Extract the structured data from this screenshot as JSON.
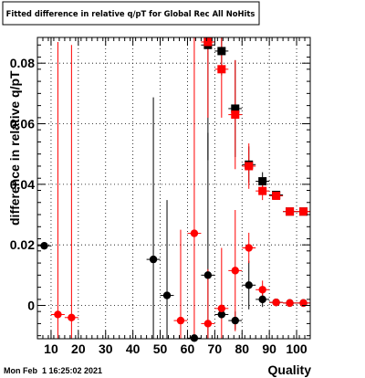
{
  "chart_data": {
    "type": "scatter",
    "title": "Fitted difference in relative q/pT for Global Rec All NoHits",
    "xlabel": "Quality",
    "ylabel": "difference in relative q/pT",
    "timestamp": "Mon Feb  1 16:25:02 2021",
    "xlim": [
      5,
      105
    ],
    "ylim": [
      -0.011,
      0.0885
    ],
    "x_ticks": [
      10,
      20,
      30,
      40,
      50,
      60,
      70,
      80,
      90,
      100
    ],
    "y_ticks": [
      0,
      0.02,
      0.04,
      0.06,
      0.08
    ],
    "y_tick_labels": [
      "0",
      "0.02",
      "0.04",
      "0.06",
      "0.08"
    ],
    "grid": true,
    "series": [
      {
        "marker": "circle",
        "color": "#000000",
        "points": [
          {
            "x": 7.5,
            "y": 0.0197,
            "err": 0.0
          },
          {
            "x": 47.5,
            "y": 0.0152,
            "err": 0.0535
          },
          {
            "x": 52.5,
            "y": 0.0033,
            "err": 0.0315
          },
          {
            "x": 62.5,
            "y": -0.0108,
            "err": 0.0004
          },
          {
            "x": 67.5,
            "y": 0.01,
            "err": 0.047
          },
          {
            "x": 72.5,
            "y": -0.003,
            "err": 0.0005
          },
          {
            "x": 77.5,
            "y": -0.005,
            "err": 0.003
          },
          {
            "x": 82.5,
            "y": 0.0067,
            "err": 0.008
          },
          {
            "x": 87.5,
            "y": 0.002,
            "err": 0.0025
          },
          {
            "x": 92.5,
            "y": 0.001,
            "err": 0.001
          },
          {
            "x": 97.5,
            "y": 0.0008,
            "err": 0.0008
          },
          {
            "x": 102.5,
            "y": 0.0008,
            "err": 0.0008
          }
        ]
      },
      {
        "marker": "circle",
        "color": "#ff0000",
        "points": [
          {
            "x": 12.5,
            "y": -0.003,
            "err": 0.09
          },
          {
            "x": 17.5,
            "y": -0.004,
            "err": 0.09
          },
          {
            "x": 57.5,
            "y": -0.005,
            "err": 0.03
          },
          {
            "x": 62.5,
            "y": 0.0238,
            "err": 0.09
          },
          {
            "x": 67.5,
            "y": -0.006,
            "err": 0.018
          },
          {
            "x": 72.5,
            "y": -0.001,
            "err": 0.02
          },
          {
            "x": 77.5,
            "y": 0.0115,
            "err": 0.02
          },
          {
            "x": 82.5,
            "y": 0.019,
            "err": 0.005
          },
          {
            "x": 87.5,
            "y": 0.0052,
            "err": 0.003
          },
          {
            "x": 92.5,
            "y": 0.001,
            "err": 0.0008
          },
          {
            "x": 97.5,
            "y": 0.0008,
            "err": 0.0006
          },
          {
            "x": 102.5,
            "y": 0.0008,
            "err": 0.0006
          }
        ]
      },
      {
        "marker": "square",
        "color": "#000000",
        "points": [
          {
            "x": 67.5,
            "y": 0.086,
            "err": 0.038
          },
          {
            "x": 72.5,
            "y": 0.084,
            "err": 0.008
          },
          {
            "x": 77.5,
            "y": 0.065,
            "err": 0.016
          },
          {
            "x": 82.5,
            "y": 0.0465,
            "err": 0.006
          },
          {
            "x": 87.5,
            "y": 0.041,
            "err": 0.003
          },
          {
            "x": 92.5,
            "y": 0.0365,
            "err": 0.001
          },
          {
            "x": 97.5,
            "y": 0.031,
            "err": 0.0005
          },
          {
            "x": 102.5,
            "y": 0.031,
            "err": 0.0005
          }
        ]
      },
      {
        "marker": "square",
        "color": "#ff0000",
        "points": [
          {
            "x": 67.5,
            "y": 0.087,
            "err": 0.025
          },
          {
            "x": 72.5,
            "y": 0.078,
            "err": 0.016
          },
          {
            "x": 77.5,
            "y": 0.063,
            "err": 0.018
          },
          {
            "x": 82.5,
            "y": 0.046,
            "err": 0.0075
          },
          {
            "x": 87.5,
            "y": 0.0378,
            "err": 0.003
          },
          {
            "x": 92.5,
            "y": 0.0362,
            "err": 0.001
          },
          {
            "x": 97.5,
            "y": 0.031,
            "err": 0.0005
          },
          {
            "x": 102.5,
            "y": 0.031,
            "err": 0.0005
          }
        ]
      }
    ]
  }
}
